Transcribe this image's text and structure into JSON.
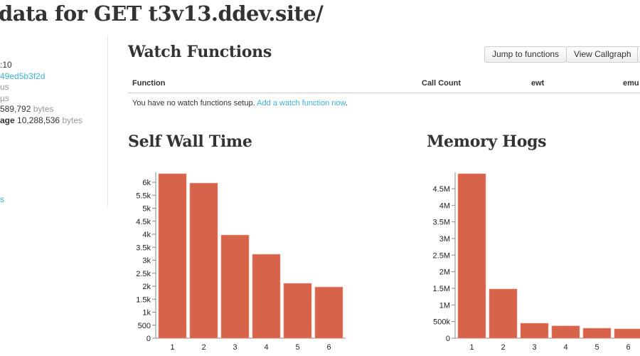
{
  "header": {
    "title": "data for GET t3v13.ddev.site/"
  },
  "sidebar": {
    "lines": [
      {
        "value": ":10",
        "style": "plain"
      },
      {
        "value": "49ed5b3f2d",
        "style": "link"
      },
      {
        "value": "us",
        "style": "muted"
      },
      {
        "value": "µs",
        "style": "muted"
      }
    ],
    "memory": {
      "value": "589,792",
      "unit": "bytes"
    },
    "peak": {
      "label": "age",
      "value": "10,288,536",
      "unit": "bytes"
    },
    "bottom_link": "s"
  },
  "watch": {
    "title": "Watch Functions",
    "buttons": [
      "Jump to functions",
      "View Callgraph",
      ""
    ],
    "columns": [
      "Function",
      "Call Count",
      "ewt",
      "emu"
    ],
    "empty_text": "You have no watch functions setup.",
    "add_link": "Add a watch function now",
    "period": "."
  },
  "chart_data": [
    {
      "type": "bar",
      "title": "Self Wall Time",
      "categories": [
        "1",
        "2",
        "3",
        "4",
        "5",
        "6"
      ],
      "values": [
        6330,
        5970,
        3970,
        3230,
        2110,
        1970
      ],
      "ylim": [
        0,
        6330
      ],
      "yticks": [
        0,
        500,
        1000,
        1500,
        2000,
        2500,
        3000,
        3500,
        4000,
        4500,
        5000,
        5500,
        6000
      ],
      "ytick_labels": [
        "0",
        "500",
        "1k",
        "1.5k",
        "2k",
        "2.5k",
        "3k",
        "3.5k",
        "4k",
        "4.5k",
        "5k",
        "5.5k",
        "6k"
      ],
      "color": "#d6634a"
    },
    {
      "type": "bar",
      "title": "Memory Hogs",
      "categories": [
        "1",
        "2",
        "3",
        "4",
        "5",
        "6"
      ],
      "values": [
        4950000,
        1480000,
        450000,
        370000,
        300000,
        280000
      ],
      "ylim": [
        0,
        4950000
      ],
      "yticks": [
        0,
        500000,
        1000000,
        1500000,
        2000000,
        2500000,
        3000000,
        3500000,
        4000000,
        4500000
      ],
      "ytick_labels": [
        "0",
        "500k",
        "1M",
        "1.5M",
        "2M",
        "2.5M",
        "3M",
        "3.5M",
        "4M",
        "4.5M"
      ],
      "color": "#d6634a"
    }
  ]
}
